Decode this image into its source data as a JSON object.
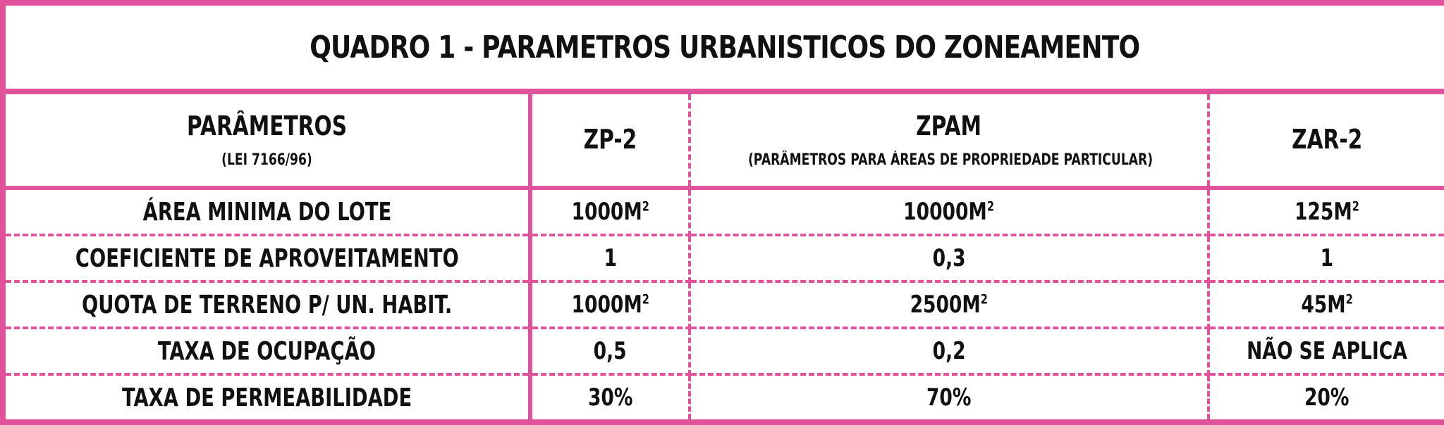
{
  "title": "QUADRO 1 - PARAMETROS URBANISTICOS DO ZONEAMENTO",
  "colors": {
    "border": "#e0529c",
    "text": "#111111",
    "background": "#ffffff"
  },
  "header": {
    "col1_title": "PARÂMETROS",
    "col1_sub": "(LEI 7166/96)",
    "col2_title": "ZP-2",
    "col3_title": "ZPAM",
    "col3_sub": "(PARÂMETROS PARA ÁREAS DE PROPRIEDADE PARTICULAR)",
    "col4_title": "ZAR-2"
  },
  "rows": [
    {
      "param": "ÁREA MINIMA DO LOTE",
      "zp2": "1000M",
      "zp2_sup": "2",
      "zpam": "10000M",
      "zpam_sup": "2",
      "zar2": "125M",
      "zar2_sup": "2"
    },
    {
      "param": "COEFICIENTE DE APROVEITAMENTO",
      "zp2": "1",
      "zp2_sup": "",
      "zpam": "0,3",
      "zpam_sup": "",
      "zar2": "1",
      "zar2_sup": ""
    },
    {
      "param": "QUOTA DE TERRENO P/ UN. HABIT.",
      "zp2": "1000M",
      "zp2_sup": "2",
      "zpam": "2500M",
      "zpam_sup": "2",
      "zar2": "45M",
      "zar2_sup": "2"
    },
    {
      "param": "TAXA DE OCUPAÇÃO",
      "zp2": "0,5",
      "zp2_sup": "",
      "zpam": "0,2",
      "zpam_sup": "",
      "zar2": "NÃO SE APLICA",
      "zar2_sup": ""
    },
    {
      "param": "TAXA DE PERMEABILIDADE",
      "zp2": "30%",
      "zp2_sup": "",
      "zpam": "70%",
      "zpam_sup": "",
      "zar2": "20%",
      "zar2_sup": ""
    }
  ]
}
